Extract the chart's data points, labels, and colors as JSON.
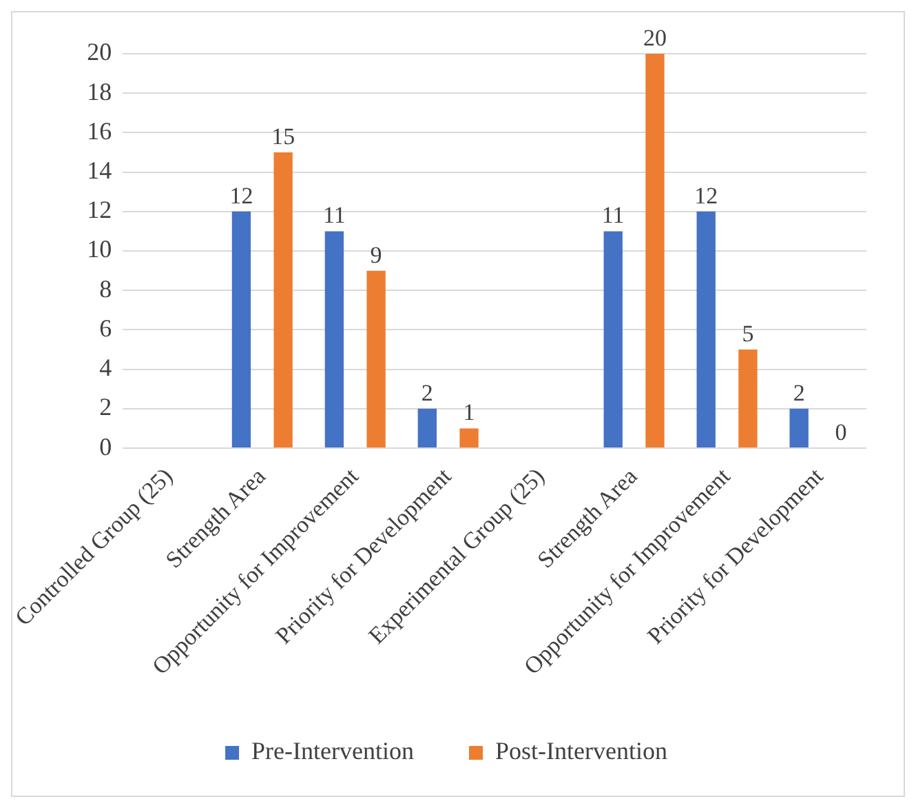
{
  "chart_data": {
    "type": "bar",
    "categories": [
      "Controlled Group (25)",
      "Strength Area",
      "Opportunity for Improvement",
      "Priority for Development",
      "Experimental Group (25)",
      "Strength Area",
      "Opportunity for Improvement",
      "Priority for Development"
    ],
    "series": [
      {
        "name": "Pre-Intervention",
        "color": "#4472c4",
        "values": [
          null,
          12,
          11,
          2,
          null,
          11,
          12,
          2
        ]
      },
      {
        "name": "Post-Intervention",
        "color": "#ed7d31",
        "values": [
          null,
          15,
          9,
          1,
          null,
          20,
          5,
          0
        ]
      }
    ],
    "ylim": [
      0,
      20
    ],
    "yticks": [
      0,
      2,
      4,
      6,
      8,
      10,
      12,
      14,
      16,
      18,
      20
    ],
    "grid": "y",
    "legend": "bottom",
    "data_labels": true
  }
}
